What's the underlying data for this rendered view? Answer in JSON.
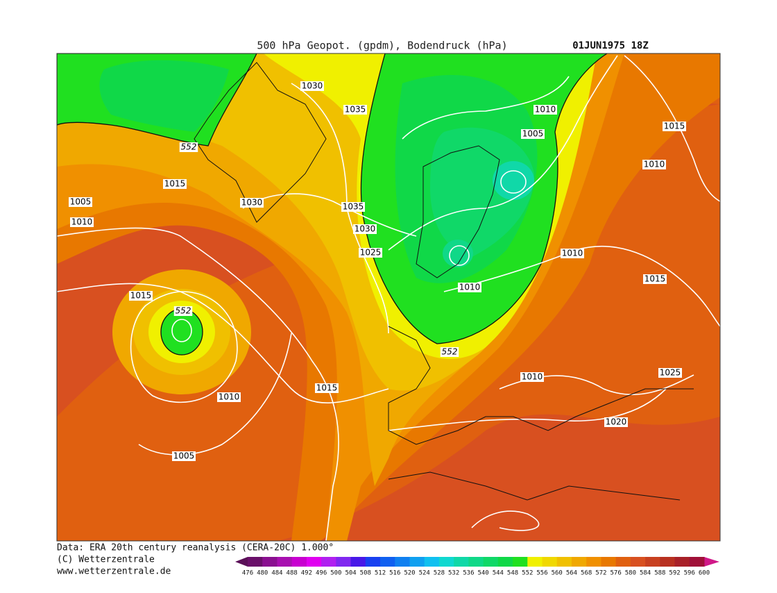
{
  "header": {
    "title": "500 hPa Geopot. (gpdm), Bodendruck (hPa)",
    "date": "01JUN1975 18Z"
  },
  "map": {
    "contour_labels": [
      1030,
      1035,
      1010,
      1005,
      552,
      1015,
      1015,
      1005,
      1010,
      1030,
      1035,
      1030,
      1025,
      1010,
      1010,
      1015,
      1015,
      552,
      1010,
      552,
      1010,
      1025,
      1015,
      1010,
      1020,
      1005
    ]
  },
  "footer": {
    "source": "Data: ERA 20th century reanalysis (CERA-20C) 1.000°",
    "copyright": "(C) Wetterzentrale",
    "url": "www.wetterzentrale.de"
  },
  "colorbar": {
    "levels": [
      476,
      480,
      484,
      488,
      492,
      496,
      500,
      504,
      508,
      512,
      516,
      520,
      524,
      528,
      532,
      536,
      540,
      544,
      548,
      552,
      556,
      560,
      564,
      568,
      572,
      576,
      580,
      584,
      588,
      592,
      596,
      600
    ],
    "colors": [
      "#6a106a",
      "#8a1090",
      "#a810b0",
      "#c800d0",
      "#e000f0",
      "#b020f0",
      "#8028f0",
      "#4818e8",
      "#1840f0",
      "#1060f0",
      "#1080f0",
      "#10a0f0",
      "#10c0f0",
      "#10d8d0",
      "#10d8a8",
      "#10d888",
      "#10d868",
      "#10d848",
      "#20e020",
      "#f0f000",
      "#f0d800",
      "#f0c000",
      "#f0a800",
      "#f09000",
      "#e87800",
      "#e06010",
      "#d85020",
      "#c84020",
      "#b83020",
      "#a82028",
      "#a01038"
    ],
    "under_color": "#5a1058",
    "over_color": "#d01888"
  }
}
